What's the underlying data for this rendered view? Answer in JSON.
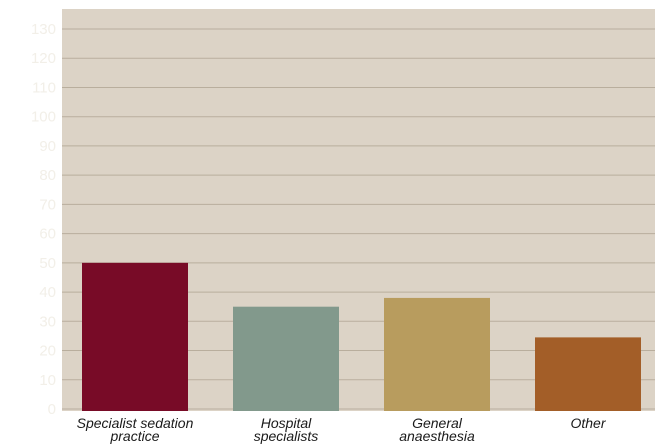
{
  "chart_data": {
    "type": "bar",
    "title": "",
    "xlabel": "",
    "ylabel": "",
    "categories": [
      [
        "Specialist sedation",
        "practice"
      ],
      [
        "Hospital",
        "specialists"
      ],
      [
        "General",
        "anaesthesia"
      ],
      [
        "Other"
      ]
    ],
    "values": [
      50,
      35,
      38,
      24.5
    ],
    "bar_colors": [
      "#780b27",
      "#82998c",
      "#b89c5e",
      "#a35e28"
    ],
    "ylim": [
      0,
      130
    ],
    "yticks": [
      0,
      10,
      20,
      30,
      40,
      50,
      60,
      70,
      80,
      90,
      100,
      110,
      120,
      130
    ],
    "grid": true,
    "legend": "none"
  },
  "colors": {
    "background": "#ffffff",
    "plot_background": "#dcd3c6",
    "gridline": "#b9ae9d",
    "tick_text": "#f2efe8",
    "category_text": "#1a1a1a"
  }
}
